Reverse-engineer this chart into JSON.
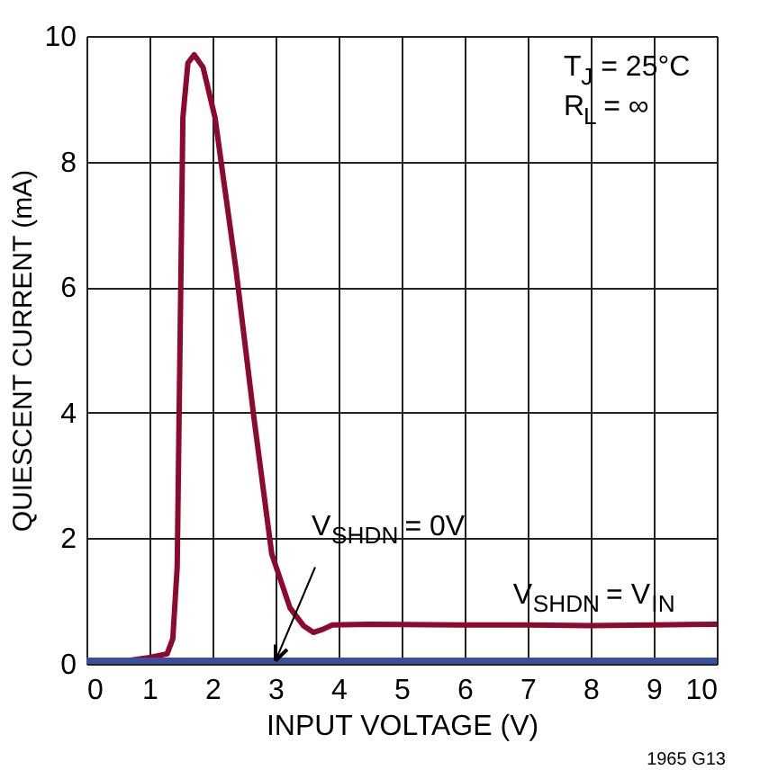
{
  "chart_data": {
    "type": "line",
    "xlabel": "INPUT VOLTAGE (V)",
    "ylabel": "QUIESCENT CURRENT (mA)",
    "xlim": [
      0,
      10
    ],
    "ylim": [
      0,
      10
    ],
    "xticks": [
      0,
      1,
      2,
      3,
      4,
      5,
      6,
      7,
      8,
      9,
      10
    ],
    "yticks": [
      0,
      2,
      4,
      6,
      8,
      10
    ],
    "grid": true,
    "marker": "none",
    "line_style": "solid",
    "series": [
      {
        "color": "#8b0a2e",
        "x": [
          0.42,
          1.0,
          1.28,
          1.37,
          1.44,
          1.5,
          1.53,
          1.61,
          1.71,
          1.85,
          2.04,
          2.37,
          2.66,
          2.94,
          3.23,
          3.45,
          3.6,
          3.75,
          3.9,
          4.5,
          6,
          7,
          8,
          9,
          10
        ],
        "values": [
          0.02,
          0.1,
          0.16,
          0.4,
          1.55,
          6.3,
          8.7,
          9.57,
          9.7,
          9.5,
          8.7,
          6.3,
          3.9,
          1.75,
          0.89,
          0.6,
          0.5,
          0.55,
          0.62,
          0.63,
          0.62,
          0.62,
          0.61,
          0.62,
          0.63
        ]
      },
      {
        "color": "#3b4fa0",
        "x": [
          0,
          10
        ],
        "values": [
          0.05,
          0.05
        ]
      }
    ],
    "annotations": [
      {
        "text": "V$_{SHDN}$ = 0V",
        "x": 3.0,
        "y": 0.05
      },
      {
        "text": "V$_{SHDN}$ = V$_{IN}$",
        "x": 8.25,
        "y": 0.62
      },
      "T$_{J}$ = 25°C",
      "R$_{L}$ = ∞",
      "1965 G13"
    ]
  }
}
